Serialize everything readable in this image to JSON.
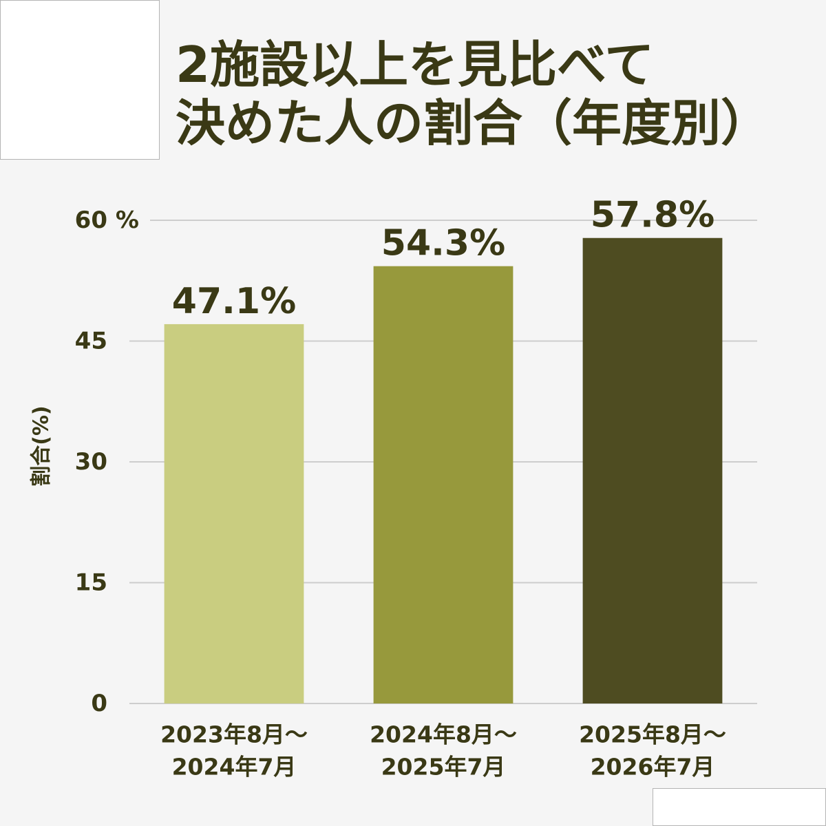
{
  "chart_data": {
    "type": "bar",
    "title": [
      "2施設以上を見比べて",
      "決めた人の割合（年度別）"
    ],
    "categories": [
      [
        "2023年8月～",
        "2024年7月"
      ],
      [
        "2024年8月～",
        "2025年7月"
      ],
      [
        "2025年8月～",
        "2026年7月"
      ]
    ],
    "values": [
      47.1,
      54.3,
      57.8
    ],
    "value_labels": [
      "47.1%",
      "54.3%",
      "57.8%"
    ],
    "ylabel": "割合(%)",
    "ylim": [
      0,
      60
    ],
    "yticks": [
      0,
      15,
      30,
      45,
      60
    ],
    "ytick_labels": [
      "0",
      "15",
      "30",
      "45",
      "60 %"
    ],
    "grid": true,
    "bar_colors": [
      "#c9cd80",
      "#97993c",
      "#4e4c21"
    ]
  },
  "colors": {
    "background": "#f5f5f5",
    "text": "#3a3915",
    "gridline": "#cdcdcd"
  }
}
